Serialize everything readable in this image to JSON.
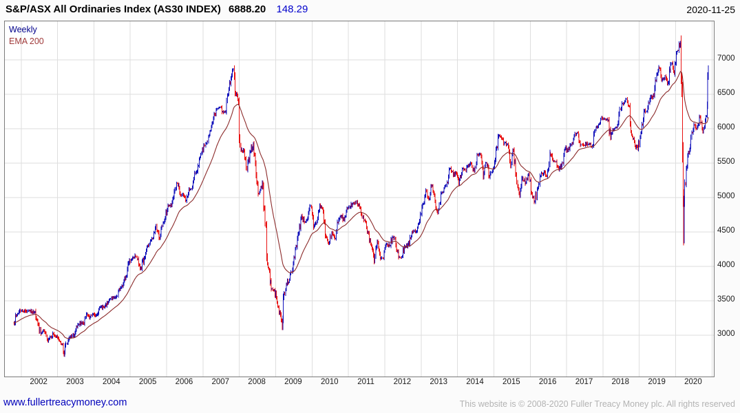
{
  "header": {
    "title": "S&P/ASX All Ordinaries Index (AS30 INDEX)",
    "last_price": "6888.20",
    "change": "148.29",
    "date": "2020-11-25"
  },
  "legend": {
    "weekly": "Weekly",
    "ema": "EMA 200"
  },
  "footer": {
    "site": "www.fullertreacymoney.com",
    "copyright": "This website is © 2008-2020 Fuller Treacy Money plc. All rights reserved"
  },
  "chart_data": {
    "type": "line",
    "style": "weekly-ohlc-bars-with-ema",
    "title": "S&P/ASX All Ordinaries Index (AS30 INDEX)",
    "xlabel": "",
    "ylabel": "",
    "grid": true,
    "legend_position": "top-left",
    "legend_entries": [
      "Weekly",
      "EMA 200"
    ],
    "xlim": [
      2001.55,
      2021.05
    ],
    "ylim": [
      2400,
      7560
    ],
    "y_ticks": [
      3000,
      3500,
      4000,
      4500,
      5000,
      5500,
      6000,
      6500,
      7000
    ],
    "x_tick_labels": [
      "2002",
      "2003",
      "2004",
      "2005",
      "2006",
      "2007",
      "2008",
      "2009",
      "2010",
      "2011",
      "2012",
      "2013",
      "2014",
      "2015",
      "2016",
      "2017",
      "2018",
      "2019",
      "2020"
    ],
    "colors": {
      "up": "#1111bb",
      "down": "#e81212",
      "ema": "#8b2a2a",
      "grid": "#dedede",
      "change_text": "#0000cc",
      "site_link": "#0000bb"
    },
    "last_value": 6888.2,
    "points_note": "approximate monthly closes as [decimal_year, index_value]; weekly bars in the figure are drawn from these anchors",
    "points": [
      [
        2001.79,
        3180
      ],
      [
        2001.88,
        3290
      ],
      [
        2001.96,
        3360
      ],
      [
        2002.04,
        3350
      ],
      [
        2002.13,
        3351
      ],
      [
        2002.21,
        3363
      ],
      [
        2002.29,
        3333
      ],
      [
        2002.38,
        3346
      ],
      [
        2002.46,
        3163
      ],
      [
        2002.54,
        3019
      ],
      [
        2002.63,
        3063
      ],
      [
        2002.71,
        2932
      ],
      [
        2002.79,
        2974
      ],
      [
        2002.88,
        3019
      ],
      [
        2002.96,
        2975
      ],
      [
        2003.04,
        2936
      ],
      [
        2003.13,
        2874
      ],
      [
        2003.18,
        2715
      ],
      [
        2003.21,
        2849
      ],
      [
        2003.29,
        2927
      ],
      [
        2003.38,
        2980
      ],
      [
        2003.46,
        3001
      ],
      [
        2003.54,
        3121
      ],
      [
        2003.63,
        3165
      ],
      [
        2003.71,
        3176
      ],
      [
        2003.79,
        3313
      ],
      [
        2003.88,
        3243
      ],
      [
        2003.96,
        3306
      ],
      [
        2004.04,
        3283
      ],
      [
        2004.13,
        3372
      ],
      [
        2004.21,
        3416
      ],
      [
        2004.29,
        3404
      ],
      [
        2004.38,
        3460
      ],
      [
        2004.46,
        3530
      ],
      [
        2004.54,
        3543
      ],
      [
        2004.63,
        3567
      ],
      [
        2004.71,
        3667
      ],
      [
        2004.79,
        3707
      ],
      [
        2004.88,
        3850
      ],
      [
        2004.96,
        4053
      ],
      [
        2005.04,
        4107
      ],
      [
        2005.13,
        4162
      ],
      [
        2005.21,
        4109
      ],
      [
        2005.29,
        3977
      ],
      [
        2005.38,
        4118
      ],
      [
        2005.46,
        4278
      ],
      [
        2005.54,
        4338
      ],
      [
        2005.63,
        4414
      ],
      [
        2005.71,
        4592
      ],
      [
        2005.79,
        4413
      ],
      [
        2005.88,
        4584
      ],
      [
        2005.96,
        4708
      ],
      [
        2006.04,
        4880
      ],
      [
        2006.13,
        4879
      ],
      [
        2006.21,
        5087
      ],
      [
        2006.29,
        5206
      ],
      [
        2006.38,
        5034
      ],
      [
        2006.46,
        5034
      ],
      [
        2006.54,
        4957
      ],
      [
        2006.63,
        5115
      ],
      [
        2006.71,
        5154
      ],
      [
        2006.79,
        5352
      ],
      [
        2006.88,
        5461
      ],
      [
        2006.96,
        5644
      ],
      [
        2007.04,
        5757
      ],
      [
        2007.13,
        5816
      ],
      [
        2007.21,
        5978
      ],
      [
        2007.29,
        6158
      ],
      [
        2007.38,
        6284
      ],
      [
        2007.46,
        6310
      ],
      [
        2007.54,
        6248
      ],
      [
        2007.63,
        6248
      ],
      [
        2007.71,
        6580
      ],
      [
        2007.79,
        6779
      ],
      [
        2007.84,
        6873
      ],
      [
        2007.88,
        6533
      ],
      [
        2007.96,
        6421
      ],
      [
        2008.04,
        5697
      ],
      [
        2008.13,
        5674
      ],
      [
        2008.21,
        5409
      ],
      [
        2008.29,
        5657
      ],
      [
        2008.38,
        5774
      ],
      [
        2008.46,
        5333
      ],
      [
        2008.54,
        5052
      ],
      [
        2008.63,
        5216
      ],
      [
        2008.71,
        4631
      ],
      [
        2008.79,
        3983
      ],
      [
        2008.88,
        3672
      ],
      [
        2008.96,
        3659
      ],
      [
        2009.04,
        3478
      ],
      [
        2009.13,
        3297
      ],
      [
        2009.18,
        3111
      ],
      [
        2009.21,
        3532
      ],
      [
        2009.29,
        3745
      ],
      [
        2009.38,
        3813
      ],
      [
        2009.46,
        3955
      ],
      [
        2009.54,
        4249
      ],
      [
        2009.63,
        4484
      ],
      [
        2009.71,
        4739
      ],
      [
        2009.79,
        4646
      ],
      [
        2009.88,
        4701
      ],
      [
        2009.96,
        4882
      ],
      [
        2010.04,
        4570
      ],
      [
        2010.13,
        4651
      ],
      [
        2010.21,
        4893
      ],
      [
        2010.29,
        4834
      ],
      [
        2010.38,
        4430
      ],
      [
        2010.46,
        4325
      ],
      [
        2010.54,
        4493
      ],
      [
        2010.63,
        4404
      ],
      [
        2010.71,
        4637
      ],
      [
        2010.79,
        4733
      ],
      [
        2010.88,
        4676
      ],
      [
        2010.96,
        4847
      ],
      [
        2011.04,
        4850
      ],
      [
        2011.13,
        4923
      ],
      [
        2011.21,
        4929
      ],
      [
        2011.29,
        4899
      ],
      [
        2011.38,
        4708
      ],
      [
        2011.46,
        4660
      ],
      [
        2011.54,
        4500
      ],
      [
        2011.63,
        4296
      ],
      [
        2011.71,
        4070
      ],
      [
        2011.79,
        4360
      ],
      [
        2011.88,
        4119
      ],
      [
        2011.96,
        4111
      ],
      [
        2012.04,
        4326
      ],
      [
        2012.13,
        4298
      ],
      [
        2012.21,
        4420
      ],
      [
        2012.29,
        4396
      ],
      [
        2012.38,
        4134
      ],
      [
        2012.46,
        4135
      ],
      [
        2012.54,
        4289
      ],
      [
        2012.63,
        4316
      ],
      [
        2012.71,
        4406
      ],
      [
        2012.79,
        4517
      ],
      [
        2012.88,
        4506
      ],
      [
        2012.96,
        4665
      ],
      [
        2013.04,
        4901
      ],
      [
        2013.13,
        5104
      ],
      [
        2013.21,
        4980
      ],
      [
        2013.29,
        5168
      ],
      [
        2013.38,
        4944
      ],
      [
        2013.46,
        4775
      ],
      [
        2013.54,
        5052
      ],
      [
        2013.63,
        5135
      ],
      [
        2013.71,
        5218
      ],
      [
        2013.79,
        5420
      ],
      [
        2013.88,
        5320
      ],
      [
        2013.96,
        5353
      ],
      [
        2014.04,
        5190
      ],
      [
        2014.13,
        5415
      ],
      [
        2014.21,
        5403
      ],
      [
        2014.29,
        5466
      ],
      [
        2014.38,
        5492
      ],
      [
        2014.46,
        5382
      ],
      [
        2014.54,
        5623
      ],
      [
        2014.63,
        5625
      ],
      [
        2014.71,
        5297
      ],
      [
        2014.79,
        5505
      ],
      [
        2014.88,
        5298
      ],
      [
        2014.96,
        5388
      ],
      [
        2015.04,
        5551
      ],
      [
        2015.13,
        5898
      ],
      [
        2015.21,
        5862
      ],
      [
        2015.29,
        5790
      ],
      [
        2015.38,
        5774
      ],
      [
        2015.46,
        5451
      ],
      [
        2015.54,
        5681
      ],
      [
        2015.63,
        5222
      ],
      [
        2015.71,
        5021
      ],
      [
        2015.79,
        5288
      ],
      [
        2015.88,
        5218
      ],
      [
        2015.96,
        5344
      ],
      [
        2016.04,
        5056
      ],
      [
        2016.13,
        4948
      ],
      [
        2016.21,
        5151
      ],
      [
        2016.29,
        5316
      ],
      [
        2016.38,
        5379
      ],
      [
        2016.46,
        5310
      ],
      [
        2016.54,
        5644
      ],
      [
        2016.63,
        5529
      ],
      [
        2016.71,
        5525
      ],
      [
        2016.79,
        5402
      ],
      [
        2016.88,
        5502
      ],
      [
        2016.96,
        5719
      ],
      [
        2017.04,
        5675
      ],
      [
        2017.13,
        5761
      ],
      [
        2017.21,
        5903
      ],
      [
        2017.29,
        5947
      ],
      [
        2017.38,
        5761
      ],
      [
        2017.46,
        5764
      ],
      [
        2017.54,
        5773
      ],
      [
        2017.63,
        5776
      ],
      [
        2017.71,
        5744
      ],
      [
        2017.79,
        5976
      ],
      [
        2017.88,
        6057
      ],
      [
        2017.96,
        6167
      ],
      [
        2018.04,
        6146
      ],
      [
        2018.13,
        6117
      ],
      [
        2018.21,
        5868
      ],
      [
        2018.29,
        5982
      ],
      [
        2018.38,
        6012
      ],
      [
        2018.46,
        6289
      ],
      [
        2018.54,
        6366
      ],
      [
        2018.63,
        6428
      ],
      [
        2018.71,
        6326
      ],
      [
        2018.79,
        5913
      ],
      [
        2018.88,
        5749
      ],
      [
        2018.96,
        5709
      ],
      [
        2019.04,
        5937
      ],
      [
        2019.13,
        6253
      ],
      [
        2019.21,
        6261
      ],
      [
        2019.29,
        6418
      ],
      [
        2019.38,
        6492
      ],
      [
        2019.46,
        6699
      ],
      [
        2019.54,
        6893
      ],
      [
        2019.63,
        6712
      ],
      [
        2019.71,
        6758
      ],
      [
        2019.79,
        6663
      ],
      [
        2019.88,
        6947
      ],
      [
        2019.96,
        6802
      ],
      [
        2020.04,
        7121
      ],
      [
        2020.13,
        7255
      ],
      [
        2020.17,
        6511
      ],
      [
        2020.22,
        4429
      ],
      [
        2020.25,
        5201
      ],
      [
        2020.33,
        5597
      ],
      [
        2020.42,
        5872
      ],
      [
        2020.5,
        6058
      ],
      [
        2020.58,
        6001
      ],
      [
        2020.67,
        6166
      ],
      [
        2020.75,
        5952
      ],
      [
        2020.79,
        6031
      ],
      [
        2020.85,
        6190
      ],
      [
        2020.9,
        6888
      ]
    ]
  }
}
